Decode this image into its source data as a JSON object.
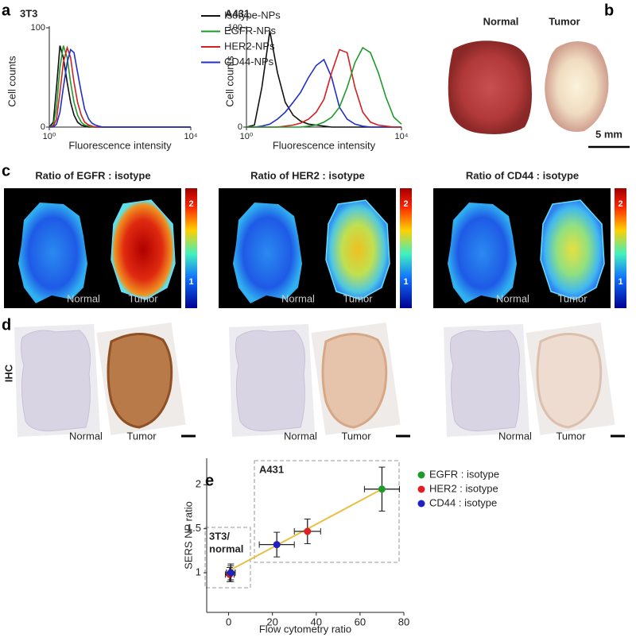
{
  "panel_labels": [
    "a",
    "b",
    "c",
    "d",
    "e"
  ],
  "chart_data": [
    {
      "type": "line",
      "title": "3T3",
      "xlabel": "Fluorescence intensity",
      "ylabel": "Cell counts",
      "xlog": true,
      "xlim": [
        1,
        10000
      ],
      "xticks": [
        {
          "value": 1,
          "label": "10⁰"
        },
        {
          "value": 10000,
          "label": "10⁴"
        }
      ],
      "ylim": [
        0,
        100
      ],
      "yticks": [
        0,
        100
      ],
      "legend": true,
      "x": [
        1,
        1.3,
        1.6,
        2,
        2.5,
        3.2,
        4,
        5,
        6.3,
        8,
        10,
        13,
        16,
        20,
        25,
        32,
        40,
        63,
        100,
        1000,
        10000
      ],
      "series": [
        {
          "name": "Isotype-NPs",
          "color": "#111111",
          "values": [
            0,
            5,
            40,
            82,
            70,
            45,
            25,
            12,
            5,
            2,
            1,
            0,
            0,
            0,
            0,
            0,
            0,
            0,
            0,
            0,
            0
          ]
        },
        {
          "name": "EGFR-NPs",
          "color": "#1f9a2a",
          "values": [
            0,
            2,
            20,
            60,
            82,
            70,
            45,
            25,
            12,
            5,
            2,
            1,
            0,
            0,
            0,
            0,
            0,
            0,
            0,
            0,
            0
          ]
        },
        {
          "name": "HER2-NPs",
          "color": "#d42020",
          "values": [
            0,
            1,
            8,
            35,
            65,
            80,
            70,
            45,
            25,
            12,
            5,
            2,
            1,
            0,
            0,
            0,
            0,
            0,
            0,
            0,
            0
          ]
        },
        {
          "name": "CD44-NPs",
          "color": "#2030c8",
          "values": [
            0,
            0,
            3,
            15,
            40,
            65,
            78,
            75,
            55,
            35,
            18,
            8,
            4,
            2,
            1,
            0,
            0,
            0,
            0,
            0,
            0
          ]
        }
      ]
    },
    {
      "type": "line",
      "title": "A431",
      "xlabel": "Fluorescence intensity",
      "ylabel": "Cell counts",
      "xlog": true,
      "xlim": [
        1,
        10000
      ],
      "xticks": [
        {
          "value": 1,
          "label": "10⁰"
        },
        {
          "value": 10000,
          "label": "10⁴"
        }
      ],
      "ylim": [
        0,
        100
      ],
      "yticks": [
        0,
        100
      ],
      "legend": false,
      "x": [
        1,
        1.6,
        2.5,
        4,
        6.3,
        10,
        16,
        25,
        40,
        63,
        100,
        158,
        251,
        398,
        631,
        1000,
        1585,
        2512,
        3981,
        6310,
        10000
      ],
      "series": [
        {
          "color": "#111111",
          "values": [
            0,
            2,
            40,
            97,
            55,
            25,
            12,
            6,
            3,
            2,
            1,
            0,
            0,
            0,
            0,
            0,
            0,
            0,
            0,
            0,
            0
          ]
        },
        {
          "color": "#2030c8",
          "values": [
            0,
            0,
            1,
            3,
            8,
            15,
            25,
            35,
            50,
            62,
            68,
            50,
            20,
            8,
            3,
            1,
            0,
            0,
            0,
            0,
            0
          ]
        },
        {
          "color": "#d42020",
          "values": [
            0,
            0,
            0,
            0,
            0,
            1,
            2,
            4,
            8,
            15,
            28,
            55,
            78,
            75,
            40,
            15,
            5,
            2,
            1,
            0,
            0
          ]
        },
        {
          "color": "#1f9a2a",
          "values": [
            0,
            0,
            0,
            0,
            0,
            0,
            0,
            0,
            1,
            2,
            5,
            10,
            20,
            40,
            65,
            80,
            75,
            55,
            30,
            10,
            3
          ]
        }
      ]
    },
    {
      "type": "scatter",
      "xlabel": "Flow cytometry ratio",
      "ylabel": "SERS NP ratio",
      "xlim": [
        -10,
        80
      ],
      "xticks": [
        0,
        20,
        40,
        60,
        80
      ],
      "ylim": [
        0.55,
        2.3
      ],
      "yticks": [
        1,
        1.5,
        2
      ],
      "legend": true,
      "annotations": [
        "A431",
        "3T3/",
        "normal"
      ],
      "fit": {
        "color": "#e8c040",
        "x": [
          0,
          70
        ],
        "values": [
          1.02,
          1.95
        ]
      },
      "series": [
        {
          "name": "EGFR : isotype",
          "color": "#1f9a2a",
          "x": [
            1,
            70
          ],
          "values": [
            1.0,
            1.95
          ],
          "xerr": [
            2,
            8
          ],
          "yerr": [
            0.1,
            0.25
          ]
        },
        {
          "name": "HER2 : isotype",
          "color": "#e02020",
          "x": [
            0.5,
            36
          ],
          "values": [
            0.98,
            1.47
          ],
          "xerr": [
            2,
            6
          ],
          "yerr": [
            0.08,
            0.14
          ]
        },
        {
          "name": "CD44 : isotype",
          "color": "#2020c0",
          "x": [
            1,
            22
          ],
          "values": [
            1.0,
            1.32
          ],
          "xerr": [
            2,
            8
          ],
          "yerr": [
            0.08,
            0.14
          ]
        }
      ]
    }
  ],
  "photo": {
    "labels": [
      "Normal",
      "Tumor"
    ],
    "scale_bar": "5 mm"
  },
  "heatmaps": [
    {
      "title": "Ratio of EGFR : isotype",
      "labels": [
        "Normal",
        "Tumor"
      ],
      "colorbar_labels": [
        "2",
        "1"
      ]
    },
    {
      "title": "Ratio of HER2 : isotype",
      "labels": [
        "Normal",
        "Tumor"
      ],
      "colorbar_labels": [
        "2",
        "1"
      ]
    },
    {
      "title": "Ratio of CD44 : isotype",
      "labels": [
        "Normal",
        "Tumor"
      ],
      "colorbar_labels": [
        "2",
        "1"
      ]
    }
  ],
  "ihc": {
    "row_label": "IHC",
    "panels": [
      {
        "labels": [
          "Normal",
          "Tumor"
        ]
      },
      {
        "labels": [
          "Normal",
          "Tumor"
        ]
      },
      {
        "labels": [
          "Normal",
          "Tumor"
        ]
      }
    ]
  }
}
